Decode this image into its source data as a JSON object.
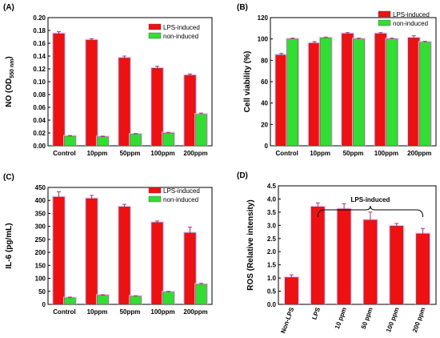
{
  "colors": {
    "lps": "#ee1111",
    "non": "#33dd33",
    "glow": "#f4b8f0",
    "error": "#aa3366"
  },
  "chart_data": [
    {
      "panel": "(A)",
      "type": "bar",
      "ylabel_main": "NO (OD",
      "ylabel_sub": "550 nm",
      "ylabel_end": ")",
      "ylim": [
        0,
        0.2
      ],
      "yticks": [
        "0.00",
        "0.02",
        "0.04",
        "0.06",
        "0.08",
        "0.10",
        "0.12",
        "0.14",
        "0.16",
        "0.18",
        "0.20"
      ],
      "categories": [
        "Control",
        "10ppm",
        "50ppm",
        "100ppm",
        "200ppm"
      ],
      "series": [
        {
          "name": "LPS-induced",
          "values": [
            0.175,
            0.165,
            0.137,
            0.121,
            0.11
          ],
          "errors": [
            0.003,
            0.002,
            0.003,
            0.003,
            0.002
          ]
        },
        {
          "name": "non-induced",
          "values": [
            0.015,
            0.014,
            0.018,
            0.02,
            0.049
          ],
          "errors": [
            0.001,
            0.001,
            0.001,
            0.001,
            0.002
          ]
        }
      ],
      "legend": "top-right"
    },
    {
      "panel": "(B)",
      "type": "bar",
      "ylabel": "Cell viability (%)",
      "ylim": [
        0,
        120
      ],
      "yticks": [
        "0",
        "20",
        "40",
        "60",
        "80",
        "100",
        "120"
      ],
      "categories": [
        "Control",
        "10ppm",
        "50ppm",
        "100ppm",
        "200ppm"
      ],
      "series": [
        {
          "name": "LPS-induced",
          "values": [
            85,
            96,
            105,
            105,
            101
          ],
          "errors": [
            1.5,
            1.5,
            1.0,
            1.0,
            2.0
          ]
        },
        {
          "name": "non-induced",
          "values": [
            100,
            101,
            100,
            100,
            97
          ],
          "errors": [
            0.8,
            0.8,
            0.8,
            0.8,
            0.8
          ]
        }
      ],
      "legend": "top-right"
    },
    {
      "panel": "(C)",
      "type": "bar",
      "ylabel": "IL-6 (pg/mL)",
      "ylim": [
        0,
        450
      ],
      "yticks": [
        "0",
        "50",
        "100",
        "150",
        "200",
        "250",
        "300",
        "350",
        "400",
        "450"
      ],
      "categories": [
        "Control",
        "10ppm",
        "50ppm",
        "100ppm",
        "200ppm"
      ],
      "series": [
        {
          "name": "LPS-induced",
          "values": [
            413,
            407,
            375,
            315,
            275
          ],
          "errors": [
            20,
            12,
            10,
            6,
            22
          ]
        },
        {
          "name": "non-induced",
          "values": [
            25,
            35,
            31,
            47,
            77
          ],
          "errors": [
            3,
            2,
            2,
            3,
            4
          ]
        }
      ],
      "legend": "top-right"
    },
    {
      "panel": "(D)",
      "type": "bar",
      "ylabel": "ROS (Relative intensity)",
      "ylim": [
        0,
        4.5
      ],
      "yticks": [
        "0.0",
        "0.5",
        "1.0",
        "1.5",
        "2.0",
        "2.5",
        "3.0",
        "3.5",
        "4.0",
        "4.5"
      ],
      "categories": [
        "Non-LPS",
        "LPS",
        "10 ppm",
        "50 ppm",
        "100 ppm",
        "200 ppm"
      ],
      "series": [
        {
          "name": "",
          "values": [
            1.02,
            3.7,
            3.62,
            3.2,
            2.97,
            2.68
          ],
          "errors": [
            0.1,
            0.15,
            0.2,
            0.3,
            0.1,
            0.2
          ]
        }
      ],
      "bracket_label": "LPS-induced"
    }
  ]
}
